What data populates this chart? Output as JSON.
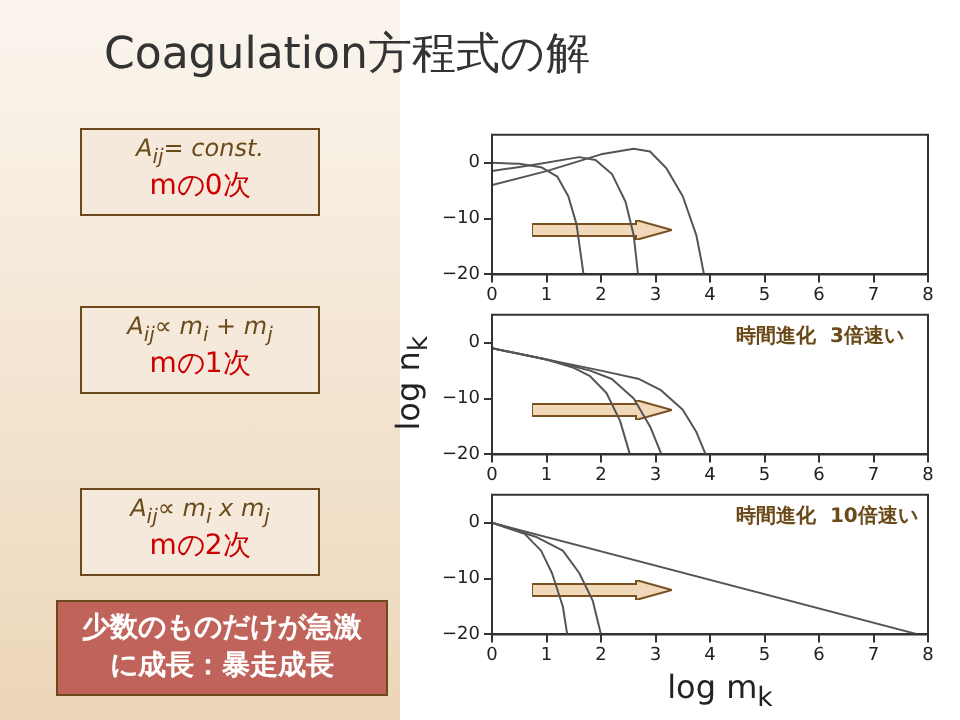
{
  "chart_data": [
    {
      "type": "line",
      "title": "Coagulation方程式の解",
      "annotations": [
        "A$_{ij}$= const.",
        "mの0次"
      ],
      "xlim": [
        0,
        8
      ],
      "xticks": [
        0,
        1,
        2,
        3,
        4,
        5,
        6,
        7,
        8
      ],
      "ylim": [
        -20,
        5
      ],
      "yticks": [
        -20,
        -10,
        0
      ],
      "grid": false,
      "legend": false,
      "marker": "none",
      "series": [
        {
          "color": "#555555",
          "x": [
            0,
            0.5,
            0.9,
            1.2,
            1.4,
            1.55,
            1.68
          ],
          "values": [
            0,
            -0.2,
            -0.8,
            -2.5,
            -6,
            -11,
            -20
          ]
        },
        {
          "color": "#555555",
          "x": [
            0,
            0.8,
            1.6,
            1.9,
            2.2,
            2.45,
            2.6,
            2.68
          ],
          "values": [
            -1.5,
            -0.3,
            1,
            0.5,
            -2,
            -7,
            -13,
            -20
          ]
        },
        {
          "color": "#555555",
          "x": [
            0,
            1,
            2,
            2.6,
            2.9,
            3.2,
            3.5,
            3.75,
            3.89
          ],
          "values": [
            -4,
            -1.5,
            1.5,
            2.5,
            2,
            -1,
            -6,
            -13,
            -20
          ]
        }
      ]
    },
    {
      "type": "line",
      "ylabel": "log n$_{k}$",
      "annotations": [
        "A$_{ij}$∝ m$_{i}$ + m$_{j}$",
        "mの1次",
        "時間進化  3倍速い"
      ],
      "xlim": [
        0,
        8
      ],
      "xticks": [
        0,
        1,
        2,
        3,
        4,
        5,
        6,
        7,
        8
      ],
      "ylim": [
        -20,
        5
      ],
      "yticks": [
        -20,
        -10,
        0
      ],
      "grid": false,
      "legend": false,
      "marker": "none",
      "series": [
        {
          "color": "#555555",
          "x": [
            0,
            1,
            1.5,
            1.8,
            2.1,
            2.35,
            2.53
          ],
          "values": [
            -1,
            -3,
            -4.5,
            -6,
            -9,
            -14,
            -20
          ]
        },
        {
          "color": "#555555",
          "x": [
            0,
            1,
            1.8,
            2.2,
            2.6,
            2.9,
            3.11
          ],
          "values": [
            -1,
            -3,
            -5,
            -6.5,
            -10,
            -15,
            -20
          ]
        },
        {
          "color": "#555555",
          "x": [
            0,
            1,
            2,
            2.7,
            3.1,
            3.5,
            3.75,
            3.92
          ],
          "values": [
            -1,
            -3,
            -5,
            -6.5,
            -8.5,
            -12,
            -16,
            -20
          ]
        }
      ]
    },
    {
      "type": "line",
      "xlabel": "log m$_{k}$",
      "annotations": [
        "A$_{ij}$∝ m$_{i}$ x m$_{j}$",
        "mの2次",
        "時間進化  10倍速い",
        "少数のものだけが急激に成長：暴走成長"
      ],
      "xlim": [
        0,
        8
      ],
      "xticks": [
        0,
        1,
        2,
        3,
        4,
        5,
        6,
        7,
        8
      ],
      "ylim": [
        -20,
        5
      ],
      "yticks": [
        -20,
        -10,
        0
      ],
      "grid": false,
      "legend": false,
      "marker": "none",
      "series": [
        {
          "color": "#555555",
          "x": [
            0,
            0.6,
            0.9,
            1.1,
            1.3,
            1.38
          ],
          "values": [
            0,
            -2,
            -5,
            -9,
            -15,
            -20
          ]
        },
        {
          "color": "#555555",
          "x": [
            0,
            0.8,
            1.3,
            1.6,
            1.85,
            2.0
          ],
          "values": [
            0,
            -2.5,
            -5,
            -9,
            -14,
            -20
          ]
        },
        {
          "color": "#555555",
          "x": [
            0,
            7.82
          ],
          "values": [
            0,
            -20
          ]
        }
      ]
    }
  ]
}
